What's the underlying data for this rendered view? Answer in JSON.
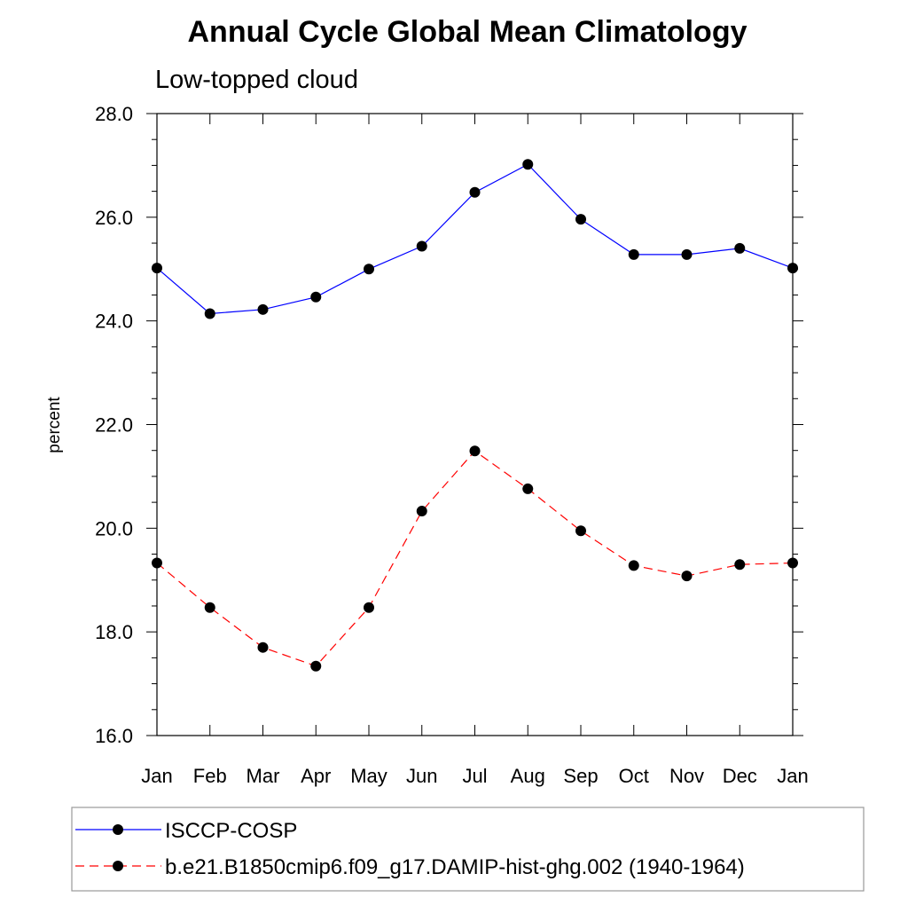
{
  "chart_data": {
    "type": "line",
    "title": "Annual Cycle Global Mean Climatology",
    "subtitle": "Low-topped cloud",
    "xlabel": "",
    "ylabel": "percent",
    "categories": [
      "Jan",
      "Feb",
      "Mar",
      "Apr",
      "May",
      "Jun",
      "Jul",
      "Aug",
      "Sep",
      "Oct",
      "Nov",
      "Dec",
      "Jan"
    ],
    "ylim": [
      16.0,
      28.0
    ],
    "yticks": [
      "16.0",
      "18.0",
      "20.0",
      "22.0",
      "24.0",
      "26.0",
      "28.0"
    ],
    "grid": false,
    "legend_position": "bottom",
    "series": [
      {
        "name": "ISCCP-COSP",
        "color": "#0000ff",
        "line_style": "solid",
        "marker": "filled-circle",
        "values": [
          25.02,
          24.14,
          24.22,
          24.46,
          25.0,
          25.44,
          26.48,
          27.02,
          25.96,
          25.28,
          25.28,
          25.4,
          25.02
        ]
      },
      {
        "name": "b.e21.B1850cmip6.f09_g17.DAMIP-hist-ghg.002 (1940-1964)",
        "color": "#ff0000",
        "line_style": "dashed",
        "marker": "filled-circle",
        "values": [
          19.33,
          18.47,
          17.7,
          17.34,
          18.47,
          20.33,
          21.49,
          20.76,
          19.95,
          19.28,
          19.08,
          19.3,
          19.33
        ]
      }
    ]
  }
}
